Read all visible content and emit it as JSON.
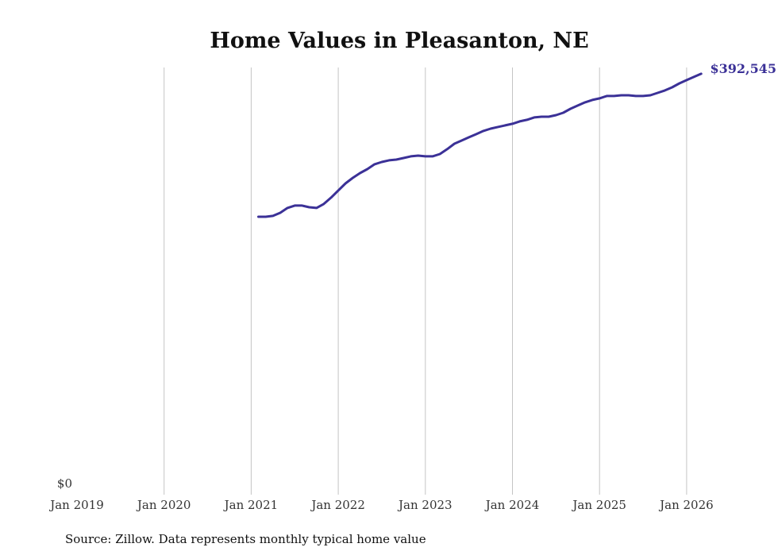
{
  "chart_data": {
    "type": "line",
    "title": "Home Values in Pleasanton, NE",
    "xlabel": "",
    "ylabel": "",
    "x_ticks": [
      "Jan 2019",
      "Jan 2020",
      "Jan 2021",
      "Jan 2022",
      "Jan 2023",
      "Jan 2024",
      "Jan 2025",
      "Jan 2026"
    ],
    "y_ticks": [
      "$0"
    ],
    "xlim": [
      2019.0,
      2026.3
    ],
    "ylim": [
      0,
      398400
    ],
    "grid": "vertical",
    "series": [
      {
        "name": "Typical home value",
        "color": "#3b3197",
        "start": "Feb 2021",
        "frequency": "monthly",
        "values": [
          259200,
          259200,
          260000,
          262900,
          267400,
          269600,
          269600,
          268100,
          267400,
          271100,
          277000,
          283700,
          290300,
          295500,
          299900,
          303600,
          308100,
          310300,
          311800,
          312500,
          314000,
          315500,
          316200,
          315500,
          315500,
          317700,
          322200,
          327300,
          330300,
          333300,
          336200,
          339200,
          341400,
          342900,
          344400,
          345900,
          348100,
          349600,
          351800,
          352500,
          352500,
          354000,
          356200,
          359900,
          362900,
          365900,
          368100,
          369600,
          371800,
          371800,
          372500,
          372500,
          371800,
          371800,
          372500,
          374700,
          377000,
          379900,
          383600,
          386600,
          389600,
          392545
        ]
      }
    ],
    "end_label": "$392,545",
    "source": "Source: Zillow. Data represents monthly typical home value"
  }
}
